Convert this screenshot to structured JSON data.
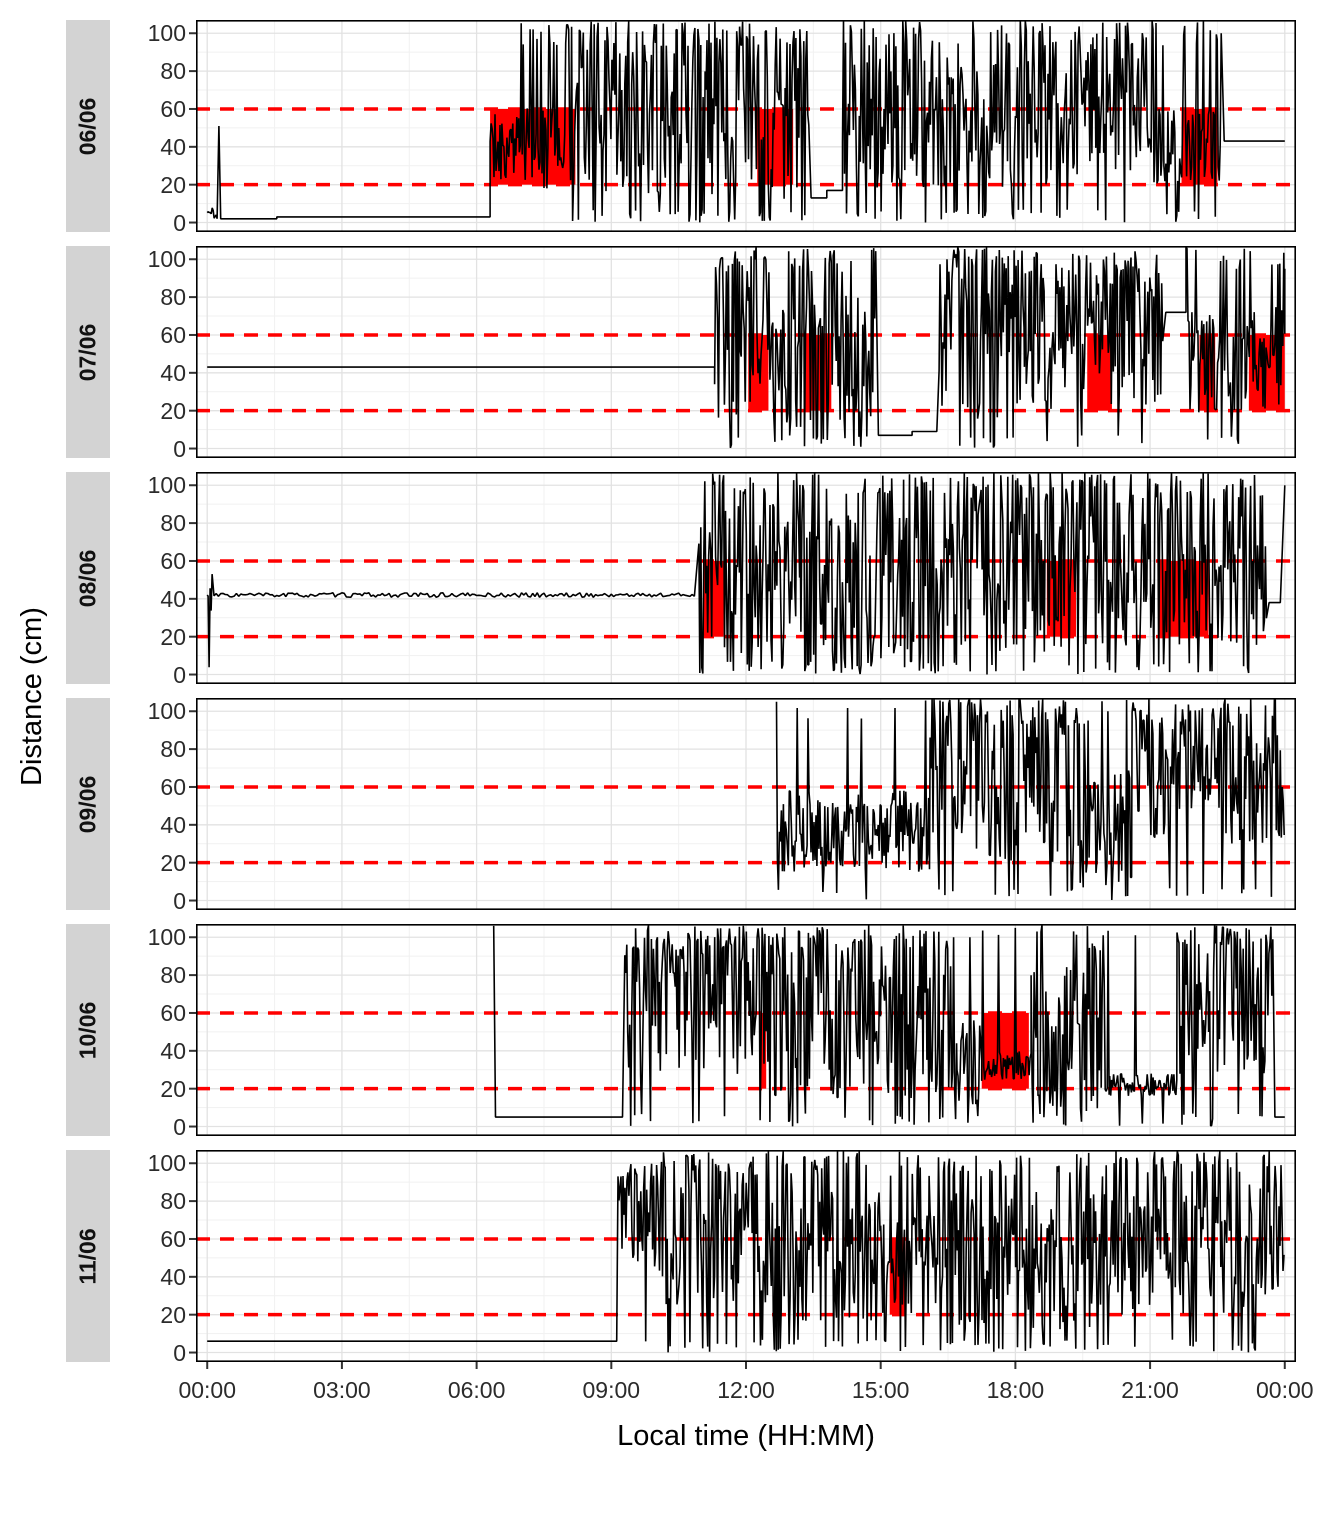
{
  "axes": {
    "ylabel": "Distance (cm)",
    "xlabel": "Local time (HH:MM)",
    "y_ticks": [
      0,
      20,
      40,
      60,
      80,
      100
    ],
    "x_ticks": [
      {
        "t": 0,
        "label": "00:00"
      },
      {
        "t": 3,
        "label": "03:00"
      },
      {
        "t": 6,
        "label": "06:00"
      },
      {
        "t": 9,
        "label": "09:00"
      },
      {
        "t": 12,
        "label": "12:00"
      },
      {
        "t": 15,
        "label": "15:00"
      },
      {
        "t": 18,
        "label": "18:00"
      },
      {
        "t": 21,
        "label": "21:00"
      },
      {
        "t": 24,
        "label": "00:00"
      }
    ]
  },
  "style": {
    "line_color": "#000000",
    "threshold_color": "#ff0000",
    "highlight_color": "#ff0000",
    "strip_bg": "#d3d3d3",
    "grid_major": "#e2e2e2",
    "grid_minor": "#f1f1f1",
    "panel_border": "#000000",
    "tick_color": "#333333"
  },
  "chart_data": {
    "type": "line",
    "x_domain": [
      0,
      24
    ],
    "y_domain": [
      0,
      105
    ],
    "thresholds": [
      20,
      60
    ],
    "grid_minor_y": [
      10,
      30,
      50,
      70,
      90
    ],
    "grid_minor_x": [
      1.5,
      4.5,
      7.5,
      10.5,
      13.5,
      16.5,
      19.5,
      22.5
    ],
    "panels": [
      {
        "date": "06/06",
        "seed": 11,
        "red_regions": [
          [
            6.3,
            8.2
          ],
          [
            12.25,
            13.05
          ],
          [
            21.7,
            22.5
          ]
        ],
        "segments": [
          {
            "type": "noisy",
            "t": [
              0.0,
              0.22
            ],
            "range": [
              1,
              9
            ],
            "spike_hi": 0,
            "spike_lo": 0
          },
          {
            "type": "point",
            "t": 0.26,
            "v": 51
          },
          {
            "type": "flat",
            "t": [
              0.3,
              1.55
            ],
            "v": 2
          },
          {
            "type": "flat",
            "t": [
              1.55,
              6.3
            ],
            "v": 3
          },
          {
            "type": "noisy",
            "t": [
              6.3,
              6.95
            ],
            "range": [
              22,
              58
            ],
            "spike_hi": 0.01,
            "spike_lo": 0.02
          },
          {
            "type": "noisy",
            "t": [
              6.95,
              8.2
            ],
            "range": [
              18,
              62
            ],
            "spike_hi": 0.2,
            "spike_lo": 0.06
          },
          {
            "type": "noisy",
            "t": [
              8.2,
              11.0
            ],
            "range": [
              15,
              92
            ],
            "spike_hi": 0.22,
            "spike_lo": 0.1
          },
          {
            "type": "noisy",
            "t": [
              11.0,
              13.4
            ],
            "range": [
              12,
              88
            ],
            "spike_hi": 0.25,
            "spike_lo": 0.12
          },
          {
            "type": "flat",
            "t": [
              13.45,
              13.8
            ],
            "v": 13
          },
          {
            "type": "flat",
            "t": [
              13.8,
              14.15
            ],
            "v": 17
          },
          {
            "type": "noisy",
            "t": [
              14.15,
              19.0
            ],
            "range": [
              18,
              88
            ],
            "spike_hi": 0.22,
            "spike_lo": 0.1
          },
          {
            "type": "noisy",
            "t": [
              19.0,
              21.0
            ],
            "range": [
              25,
              95
            ],
            "spike_hi": 0.25,
            "spike_lo": 0.06
          },
          {
            "type": "noisy",
            "t": [
              21.0,
              22.6
            ],
            "range": [
              20,
              60
            ],
            "spike_hi": 0.18,
            "spike_lo": 0.05
          },
          {
            "type": "flat",
            "t": [
              22.65,
              24
            ],
            "v": 43
          }
        ]
      },
      {
        "date": "07/06",
        "seed": 22,
        "red_regions": [
          [
            12.05,
            12.5
          ],
          [
            13.3,
            13.9
          ],
          [
            19.6,
            20.15
          ],
          [
            22.1,
            22.45
          ],
          [
            23.2,
            24
          ]
        ],
        "segments": [
          {
            "type": "flat",
            "t": [
              0,
              11.3
            ],
            "v": 43
          },
          {
            "type": "noisy",
            "t": [
              11.3,
              12.6
            ],
            "range": [
              15,
              95
            ],
            "spike_hi": 0.25,
            "spike_lo": 0.08
          },
          {
            "type": "noisy",
            "t": [
              12.6,
              14.9
            ],
            "range": [
              10,
              85
            ],
            "spike_hi": 0.22,
            "spike_lo": 0.12
          },
          {
            "type": "flat",
            "t": [
              14.95,
              15.7
            ],
            "v": 7
          },
          {
            "type": "flat",
            "t": [
              15.7,
              16.25
            ],
            "v": 9
          },
          {
            "type": "noisy",
            "t": [
              16.3,
              18.2
            ],
            "range": [
              12,
              90
            ],
            "spike_hi": 0.25,
            "spike_lo": 0.1
          },
          {
            "type": "noisy",
            "t": [
              18.2,
              21.3
            ],
            "range": [
              20,
              95
            ],
            "spike_hi": 0.28,
            "spike_lo": 0.06
          },
          {
            "type": "flat",
            "t": [
              21.35,
              21.8
            ],
            "v": 72
          },
          {
            "type": "noisy",
            "t": [
              21.8,
              24
            ],
            "range": [
              18,
              75
            ],
            "spike_hi": 0.15,
            "spike_lo": 0.08
          },
          {
            "type": "point",
            "t": 24,
            "v": 95
          }
        ]
      },
      {
        "date": "08/06",
        "seed": 33,
        "red_regions": [
          [
            11.05,
            11.5
          ],
          [
            18.7,
            19.35
          ],
          [
            21.2,
            22.3
          ]
        ],
        "segments": [
          {
            "type": "point",
            "t": 0,
            "v": 42
          },
          {
            "type": "noisy",
            "t": [
              0.02,
              0.12
            ],
            "range": [
              3,
              55
            ],
            "spike_hi": 0,
            "spike_lo": 0
          },
          {
            "type": "flat",
            "t": [
              0.15,
              10.9
            ],
            "v": 42,
            "jitter": 1.2
          },
          {
            "type": "noisy",
            "t": [
              10.95,
              13.2
            ],
            "range": [
              10,
              90
            ],
            "spike_hi": 0.22,
            "spike_lo": 0.12
          },
          {
            "type": "noisy",
            "t": [
              13.2,
              16.4
            ],
            "range": [
              8,
              85
            ],
            "spike_hi": 0.2,
            "spike_lo": 0.15
          },
          {
            "type": "noisy",
            "t": [
              16.4,
              20.4
            ],
            "range": [
              12,
              92
            ],
            "spike_hi": 0.25,
            "spike_lo": 0.1
          },
          {
            "type": "noisy",
            "t": [
              20.4,
              23.6
            ],
            "range": [
              15,
              88
            ],
            "spike_hi": 0.25,
            "spike_lo": 0.1
          },
          {
            "type": "flat",
            "t": [
              23.65,
              23.9
            ],
            "v": 38
          },
          {
            "type": "point",
            "t": 24,
            "v": 100
          }
        ]
      },
      {
        "date": "09/06",
        "seed": 44,
        "red_regions": [],
        "segments": [
          {
            "type": "point",
            "t": 12.68,
            "v": 105
          },
          {
            "type": "noisy",
            "t": [
              12.7,
              16.1
            ],
            "range": [
              15,
              58
            ],
            "spike_hi": 0.08,
            "spike_lo": 0.03
          },
          {
            "type": "noisy",
            "t": [
              16.1,
              19.4
            ],
            "range": [
              20,
              95
            ],
            "spike_hi": 0.28,
            "spike_lo": 0.05
          },
          {
            "type": "noisy",
            "t": [
              19.4,
              20.6
            ],
            "range": [
              8,
              70
            ],
            "spike_hi": 0.12,
            "spike_lo": 0.15
          },
          {
            "type": "noisy",
            "t": [
              20.6,
              24
            ],
            "range": [
              30,
              95
            ],
            "spike_hi": 0.3,
            "spike_lo": 0.04
          }
        ]
      },
      {
        "date": "10/06",
        "seed": 55,
        "red_regions": [
          [
            12.3,
            12.45
          ],
          [
            17.25,
            18.3
          ]
        ],
        "segments": [
          {
            "type": "point",
            "t": 6.38,
            "v": 106
          },
          {
            "type": "flat",
            "t": [
              6.42,
              9.25
            ],
            "v": 5
          },
          {
            "type": "noisy",
            "t": [
              9.3,
              12.4
            ],
            "range": [
              25,
              100
            ],
            "spike_hi": 0.3,
            "spike_lo": 0.05
          },
          {
            "type": "noisy",
            "t": [
              12.4,
              16.7
            ],
            "range": [
              15,
              95
            ],
            "spike_hi": 0.3,
            "spike_lo": 0.08
          },
          {
            "type": "noisy",
            "t": [
              16.7,
              17.25
            ],
            "range": [
              10,
              60
            ],
            "spike_hi": 0.1,
            "spike_lo": 0.1
          },
          {
            "type": "noisy",
            "t": [
              17.25,
              18.35
            ],
            "range": [
              24,
              40
            ],
            "spike_hi": 0.06,
            "spike_lo": 0.02
          },
          {
            "type": "noisy",
            "t": [
              18.35,
              20.1
            ],
            "range": [
              5,
              85
            ],
            "spike_hi": 0.18,
            "spike_lo": 0.12
          },
          {
            "type": "noisy",
            "t": [
              20.1,
              21.6
            ],
            "range": [
              16,
              28
            ],
            "spike_hi": 0.06,
            "spike_lo": 0.02
          },
          {
            "type": "noisy",
            "t": [
              21.6,
              23.75
            ],
            "range": [
              25,
              100
            ],
            "spike_hi": 0.3,
            "spike_lo": 0.04
          },
          {
            "type": "flat",
            "t": [
              23.78,
              24
            ],
            "v": 5
          }
        ]
      },
      {
        "date": "11/06",
        "seed": 66,
        "red_regions": [
          [
            15.2,
            15.55
          ]
        ],
        "segments": [
          {
            "type": "flat",
            "t": [
              0,
              9.12
            ],
            "v": 6
          },
          {
            "type": "noisy",
            "t": [
              9.15,
              10.2
            ],
            "range": [
              40,
              95
            ],
            "spike_hi": 0.2,
            "spike_lo": 0.02
          },
          {
            "type": "noisy",
            "t": [
              10.2,
              12.3
            ],
            "range": [
              25,
              90
            ],
            "spike_hi": 0.25,
            "spike_lo": 0.08
          },
          {
            "type": "noisy",
            "t": [
              12.3,
              15.0
            ],
            "range": [
              15,
              85
            ],
            "spike_hi": 0.2,
            "spike_lo": 0.12
          },
          {
            "type": "noisy",
            "t": [
              15.0,
              16.2
            ],
            "range": [
              20,
              75
            ],
            "spike_hi": 0.12,
            "spike_lo": 0.1
          },
          {
            "type": "noisy",
            "t": [
              16.2,
              20.0
            ],
            "range": [
              12,
              85
            ],
            "spike_hi": 0.2,
            "spike_lo": 0.12
          },
          {
            "type": "noisy",
            "t": [
              20.0,
              24
            ],
            "range": [
              20,
              90
            ],
            "spike_hi": 0.25,
            "spike_lo": 0.08
          }
        ]
      }
    ]
  }
}
